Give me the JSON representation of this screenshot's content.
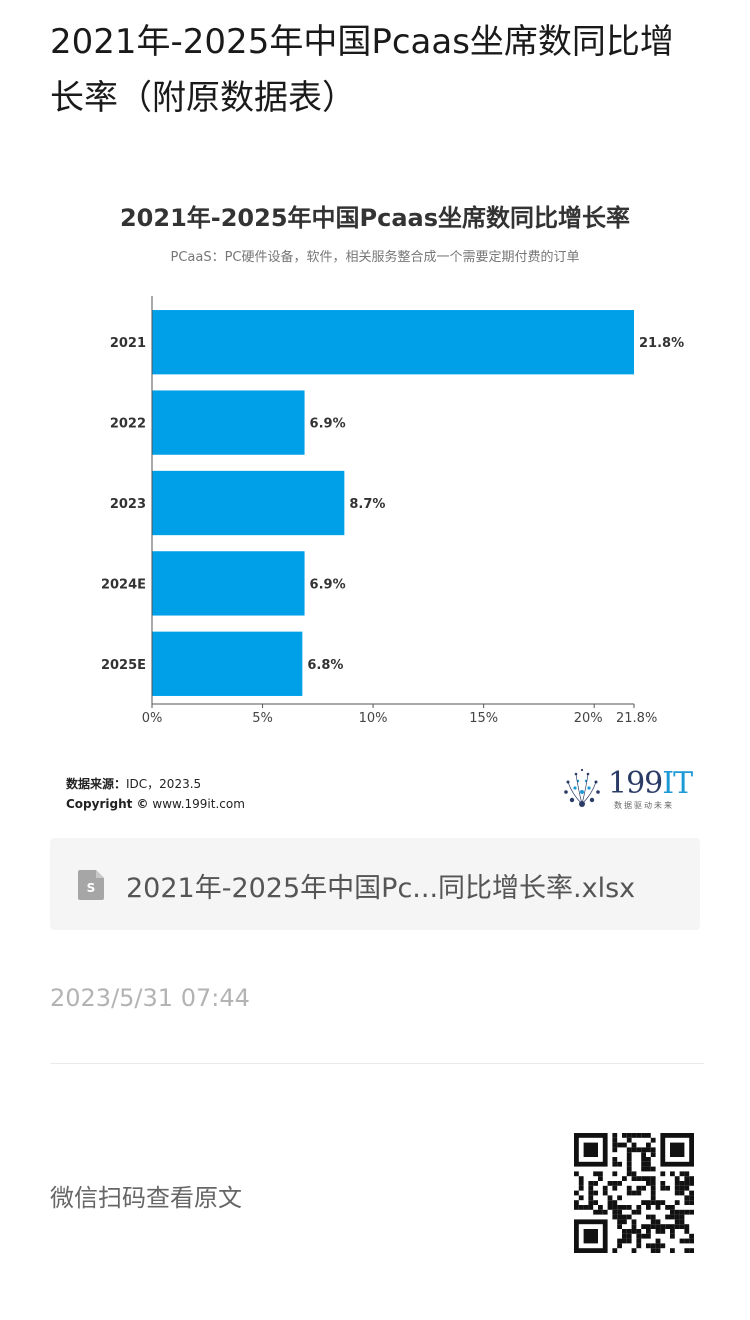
{
  "page": {
    "title": "2021年-2025年中国Pcaas坐席数同比增长率（附原数据表）"
  },
  "chart_data": {
    "type": "bar",
    "orientation": "horizontal",
    "title": "2021年-2025年中国Pcaas坐席数同比增长率",
    "subtitle": "PCaaS：PC硬件设备，软件，相关服务整合成一个需要定期付费的订单",
    "categories": [
      "2021",
      "2022",
      "2023",
      "2024E",
      "2025E"
    ],
    "values": [
      21.8,
      6.9,
      8.7,
      6.9,
      6.8
    ],
    "value_labels": [
      "21.8%",
      "6.9%",
      "8.7%",
      "6.9%",
      "6.8%"
    ],
    "xlim": [
      0,
      21.8
    ],
    "x_ticks": [
      "0%",
      "5%",
      "10%",
      "15%",
      "20%",
      "21.8%"
    ],
    "x_tick_values": [
      0,
      5,
      10,
      15,
      20,
      21.8
    ],
    "bar_color": "#00a0e9",
    "grid": false,
    "legend": "none"
  },
  "source": {
    "label": "数据来源：",
    "value": "IDC，2023.5",
    "copyright_label": "Copyright ©",
    "copyright_value": "www.199it.com"
  },
  "logo": {
    "text_main": "199",
    "text_accent": "IT",
    "tagline": "数据驱动未来"
  },
  "file_card": {
    "icon": "spreadsheet-file-icon",
    "name": "2021年-2025年中国Pc...同比增长率.xlsx"
  },
  "meta": {
    "timestamp": "2023/5/31 07:44",
    "qr_caption": "微信扫码查看原文",
    "qr_icon": "qr-code-icon"
  },
  "colors": {
    "accent": "#00a0e9",
    "logo_dark": "#2a3b66",
    "logo_blue": "#1c9ad6"
  }
}
